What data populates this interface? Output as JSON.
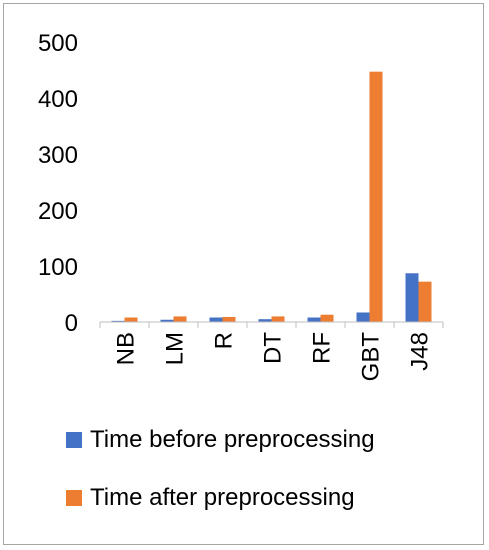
{
  "chart_data": {
    "type": "bar",
    "categories": [
      "NB",
      "LM",
      "R",
      "DT",
      "RF",
      "GBT",
      "J48"
    ],
    "series": [
      {
        "name": "Time before preprocessing",
        "values": [
          2,
          4,
          8,
          5,
          8,
          17,
          87
        ],
        "color": "#4472C4"
      },
      {
        "name": "Time after preprocessing",
        "values": [
          8,
          10,
          9,
          10,
          13,
          447,
          72
        ],
        "color": "#ED7D31"
      }
    ],
    "title": "",
    "xlabel": "",
    "ylabel": "",
    "ylim": [
      0,
      500
    ],
    "yticks": [
      0,
      100,
      200,
      300,
      400,
      500
    ],
    "grid": false,
    "legend_position": "bottom"
  }
}
